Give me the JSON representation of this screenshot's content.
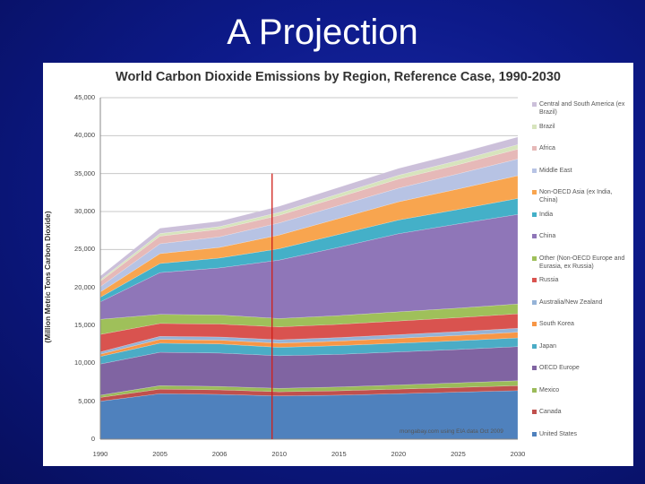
{
  "slide": {
    "title": "A Projection"
  },
  "chart_data": {
    "type": "area",
    "stacked": true,
    "title": "World Carbon Dioxide Emissions by Region, Reference Case, 1990-2030",
    "xlabel": "",
    "ylabel": "(Million Metric Tons Carbon Dioxide)",
    "ylim": [
      0,
      45000
    ],
    "yticks": [
      "0",
      "5,000",
      "10,000",
      "15,000",
      "20,000",
      "25,000",
      "30,000",
      "35,000",
      "40,000",
      "45,000"
    ],
    "categories": [
      "1990",
      "2005",
      "2006",
      "2010",
      "2015",
      "2020",
      "2025",
      "2030"
    ],
    "grid": true,
    "legend_position": "right",
    "annotation": {
      "category": "2010",
      "description": "vertical red line separating history from projection"
    },
    "source_note": "mongabay.com using EIA data Oct 2009",
    "series": [
      {
        "name": "United States",
        "color": "#4f81bd",
        "values": [
          5000,
          6000,
          5900,
          5700,
          5800,
          6000,
          6200,
          6400
        ]
      },
      {
        "name": "Canada",
        "color": "#c0504d",
        "values": [
          500,
          600,
          600,
          550,
          580,
          600,
          620,
          650
        ]
      },
      {
        "name": "Mexico",
        "color": "#9bbb59",
        "values": [
          300,
          450,
          450,
          450,
          500,
          550,
          600,
          650
        ]
      },
      {
        "name": "OECD Europe",
        "color": "#8064a2",
        "values": [
          4100,
          4400,
          4400,
          4300,
          4300,
          4350,
          4400,
          4500
        ]
      },
      {
        "name": "Japan",
        "color": "#4bacc6",
        "values": [
          1000,
          1200,
          1200,
          1100,
          1150,
          1150,
          1150,
          1150
        ]
      },
      {
        "name": "South Korea",
        "color": "#f79646",
        "values": [
          300,
          500,
          500,
          550,
          600,
          650,
          700,
          750
        ]
      },
      {
        "name": "Australia/New Zealand",
        "color": "#95b3d7",
        "values": [
          300,
          400,
          420,
          450,
          460,
          480,
          500,
          520
        ]
      },
      {
        "name": "Russia",
        "color": "#d9534f",
        "values": [
          2300,
          1700,
          1700,
          1700,
          1750,
          1800,
          1850,
          1900
        ]
      },
      {
        "name": "Other (Non-OECD Europe and Eurasia, ex Russia)",
        "color": "#9fc05a",
        "values": [
          2000,
          1200,
          1200,
          1100,
          1150,
          1200,
          1250,
          1300
        ]
      },
      {
        "name": "China",
        "color": "#8f76b8",
        "values": [
          2300,
          5500,
          6200,
          7700,
          9000,
          10300,
          11100,
          11800
        ]
      },
      {
        "name": "India",
        "color": "#44b0c8",
        "values": [
          600,
          1200,
          1300,
          1500,
          1700,
          1800,
          1900,
          2100
        ]
      },
      {
        "name": "Non-OECD Asia (ex India, China)",
        "color": "#f8a54f",
        "values": [
          700,
          1300,
          1400,
          1800,
          2100,
          2400,
          2700,
          3000
        ]
      },
      {
        "name": "Middle East",
        "color": "#b7c3e4",
        "values": [
          700,
          1300,
          1400,
          1600,
          1700,
          1800,
          2000,
          2200
        ]
      },
      {
        "name": "Africa",
        "color": "#e6b9b8",
        "values": [
          700,
          1000,
          1000,
          1000,
          1100,
          1200,
          1200,
          1300
        ]
      },
      {
        "name": "Brazil",
        "color": "#d7e4bd",
        "values": [
          200,
          350,
          350,
          400,
          450,
          500,
          550,
          600
        ]
      },
      {
        "name": "Central and South America (ex Brazil)",
        "color": "#ccc0da",
        "values": [
          500,
          700,
          700,
          800,
          850,
          900,
          950,
          1000
        ]
      }
    ]
  }
}
